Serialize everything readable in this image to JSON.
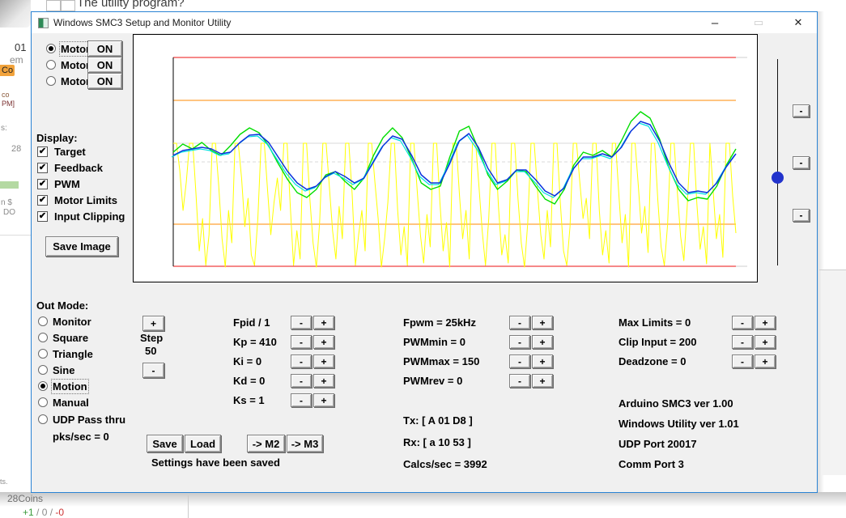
{
  "glyphs": {
    "check": "✔",
    "minus": "-",
    "plus": "+",
    "minimize": "–",
    "maximize": "▭",
    "close": "✕"
  },
  "background": {
    "top_text": "The utility program?",
    "left_items": {
      "i01": "01",
      "iem": "em",
      "chip": "Co",
      "ico": "co",
      "ipm": "PM]",
      "is": "s:",
      "i28": "28",
      "ins": "n $",
      "ido": "DO",
      "its": "ts."
    },
    "bottom": {
      "coins": "28Coins",
      "plus": "+1",
      "mid": " / 0 / ",
      "minus": "-0"
    }
  },
  "window": {
    "title": "Windows SMC3 Setup and Monitor Utility",
    "motors": {
      "on": "ON",
      "selected": "Motor 1",
      "items": [
        {
          "label": "Motor 1"
        },
        {
          "label": "Motor 2"
        },
        {
          "label": "Motor 3"
        }
      ]
    },
    "display": {
      "heading": "Display:",
      "items": [
        {
          "label": "Target"
        },
        {
          "label": "Feedback"
        },
        {
          "label": "PWM"
        },
        {
          "label": "Motor Limits"
        },
        {
          "label": "Input Clipping"
        }
      ]
    },
    "save_image": "Save Image",
    "out_mode": {
      "heading": "Out Mode:",
      "selected": "Motion",
      "pks": "pks/sec = 0",
      "items": [
        {
          "label": "Monitor"
        },
        {
          "label": "Square"
        },
        {
          "label": "Triangle"
        },
        {
          "label": "Sine"
        },
        {
          "label": "Motion"
        },
        {
          "label": "Manual"
        },
        {
          "label": "UDP Pass thru"
        }
      ]
    },
    "step": {
      "label": "Step",
      "value": "50"
    },
    "pid": {
      "rows": [
        {
          "label": "Fpid / 1"
        },
        {
          "label": "Kp = 410"
        },
        {
          "label": "Ki = 0"
        },
        {
          "label": "Kd = 0"
        },
        {
          "label": "Ks = 1"
        }
      ]
    },
    "pwm": {
      "rows": [
        {
          "label": "Fpwm = 25kHz"
        },
        {
          "label": "PWMmin = 0"
        },
        {
          "label": "PWMmax = 150"
        },
        {
          "label": "PWMrev = 0"
        }
      ]
    },
    "limits": {
      "rows": [
        {
          "label": "Max Limits = 0"
        },
        {
          "label": "Clip Input = 200"
        },
        {
          "label": "Deadzone = 0"
        }
      ]
    },
    "actions": {
      "save": "Save",
      "load": "Load",
      "m2": "-> M2",
      "m3": "-> M3",
      "status": "Settings have been saved"
    },
    "comm": {
      "tx": "Tx: [ A 01 D8 ]",
      "rx": "Rx: [ a 10 53 ]",
      "calcs": "Calcs/sec = 3992"
    },
    "info": {
      "lines": [
        {
          "text": "Arduino SMC3 ver 1.00"
        },
        {
          "text": "Windows Utility ver 1.01"
        },
        {
          "text": "UDP Port 20017"
        },
        {
          "text": "Comm Port 3"
        }
      ]
    }
  },
  "chart_data": {
    "type": "line",
    "title": "",
    "xlabel": "",
    "ylabel": "",
    "grid": "horizontal reference lines only",
    "legend_position": "none (legend is the Display checkbox group)",
    "y_unit": "pixel offset from center line (positive = up)",
    "ref_lines": [
      {
        "name": "motor-limit-max",
        "y": 129,
        "color": "#ee1111",
        "extend": true
      },
      {
        "name": "input-clip-max",
        "y": 76,
        "color": "#ff8a00"
      },
      {
        "name": "pwm-clip-max",
        "y": 23,
        "color": "#d9d9d9"
      },
      {
        "name": "center-zero",
        "y": 0,
        "color": "#d9d9d9",
        "dashed": true
      },
      {
        "name": "input-clip-min",
        "y": -77,
        "color": "#ff8a00"
      },
      {
        "name": "motor-limit-min",
        "y": -129,
        "color": "#ee1111",
        "extend": true
      }
    ],
    "series": [
      {
        "name": "PWM",
        "color": "#ffff00",
        "width": 1,
        "values": [
          23,
          23,
          -10,
          -60,
          -25,
          23,
          23,
          -40,
          -110,
          -70,
          -128,
          -90,
          23,
          23,
          -30,
          -95,
          -130,
          -60,
          -100,
          23,
          23,
          -20,
          -80,
          -45,
          -115,
          -128,
          -70,
          23,
          23,
          -35,
          -90,
          -50,
          -20,
          -60,
          23,
          23,
          -55,
          -128,
          -85,
          -120,
          23,
          23,
          -45,
          -100,
          -130,
          -75,
          23,
          23,
          -30,
          -85,
          -120,
          -55,
          -95,
          23,
          23,
          -40,
          -128,
          -90,
          -60,
          -110,
          23,
          23,
          -25,
          -70,
          -130,
          -95,
          -50,
          23,
          23,
          -60,
          -115,
          -80,
          -128,
          23,
          23,
          -35,
          -90,
          -125,
          -65,
          -105,
          23,
          23,
          -50,
          -110,
          -75,
          -130,
          23,
          23,
          -40,
          -95,
          -60,
          -120,
          23,
          23,
          -30,
          -85,
          -128,
          -70,
          23,
          23,
          -55,
          -115,
          -90,
          -125,
          23,
          23,
          -45,
          -100,
          -130,
          -75,
          23,
          23,
          -35,
          -90,
          -120,
          -60,
          -105,
          23,
          23,
          -50,
          -110,
          -128,
          -80,
          23,
          23,
          -25,
          -70,
          -45,
          -95,
          23,
          23,
          -60,
          -115,
          -85,
          -125,
          23,
          23,
          -40,
          -100,
          -65,
          -130,
          23,
          23,
          -30,
          -88,
          -55,
          -112,
          23,
          23,
          -48,
          -105,
          -128,
          -78,
          23,
          23,
          -38,
          -92,
          -122,
          -58,
          23,
          23,
          -52,
          -108,
          -80,
          -126,
          23,
          -35,
          -95,
          -65,
          -118,
          23,
          23,
          -42,
          -88
        ]
      },
      {
        "name": "Target",
        "color": "#00dd00",
        "width": 1.4,
        "values": [
          12,
          22,
          16,
          24,
          14,
          8,
          20,
          34,
          42,
          36,
          20,
          -2,
          -22,
          -38,
          -44,
          -34,
          -16,
          -12,
          -24,
          -34,
          -20,
          8,
          30,
          42,
          30,
          4,
          -26,
          -34,
          -30,
          6,
          38,
          44,
          16,
          -16,
          -34,
          -24,
          -10,
          -12,
          -30,
          -46,
          -52,
          -34,
          -4,
          12,
          8,
          14,
          6,
          26,
          50,
          62,
          54,
          28,
          -8,
          -34,
          -48,
          -44,
          -46,
          -30,
          -4,
          16
        ]
      },
      {
        "name": "Feedback raw",
        "color": "#00e0e0",
        "width": 1.2,
        "offset": "-2,2",
        "values": [
          8,
          14,
          16,
          18,
          16,
          10,
          12,
          24,
          33,
          34,
          24,
          6,
          -12,
          -26,
          -34,
          -30,
          -18,
          -12,
          -18,
          -26,
          -20,
          0,
          20,
          32,
          28,
          8,
          -16,
          -26,
          -26,
          -2,
          26,
          35,
          18,
          -8,
          -26,
          -22,
          -10,
          -10,
          -22,
          -36,
          -42,
          -32,
          -8,
          6,
          6,
          10,
          6,
          18,
          38,
          50,
          46,
          26,
          -2,
          -26,
          -38,
          -36,
          -38,
          -26,
          -6,
          10
        ]
      },
      {
        "name": "Feedback",
        "color": "#0a33dd",
        "width": 1.5,
        "values": [
          8,
          14,
          16,
          18,
          16,
          10,
          12,
          24,
          33,
          34,
          24,
          6,
          -12,
          -26,
          -34,
          -30,
          -18,
          -12,
          -18,
          -26,
          -20,
          0,
          20,
          32,
          28,
          8,
          -16,
          -26,
          -26,
          -2,
          26,
          35,
          18,
          -8,
          -26,
          -22,
          -10,
          -10,
          -22,
          -36,
          -42,
          -32,
          -8,
          6,
          6,
          10,
          6,
          18,
          38,
          50,
          46,
          26,
          -2,
          -26,
          -38,
          -36,
          -38,
          -26,
          -6,
          10
        ]
      }
    ]
  }
}
